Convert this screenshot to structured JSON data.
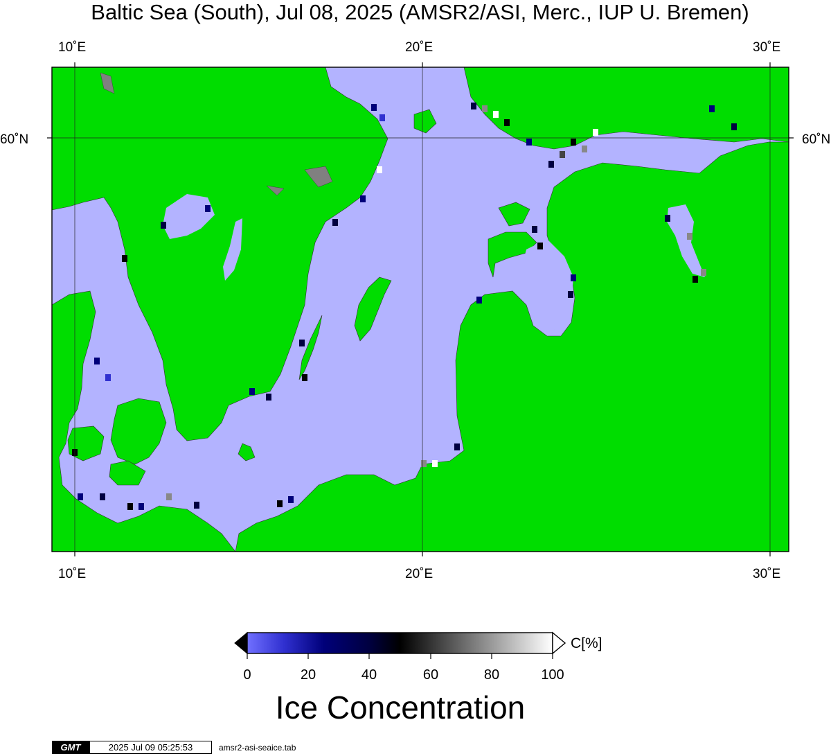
{
  "title": "Baltic Sea (South), Jul 08, 2025 (AMSR2/ASI, Merc., IUP U. Bremen)",
  "axes": {
    "top_ticks": [
      "10˚E",
      "20˚E",
      "30˚E"
    ],
    "bottom_ticks": [
      "10˚E",
      "20˚E",
      "30˚E"
    ],
    "left_ticks": [
      "60˚N"
    ],
    "right_ticks": [
      "60˚N"
    ]
  },
  "colors": {
    "land": "#00dd00",
    "open_water": "#b3b3ff",
    "low_conc": "#0000aa",
    "mid_conc": "#000000",
    "high_conc": "#ffffff"
  },
  "colorbar": {
    "ticks": [
      "0",
      "20",
      "40",
      "60",
      "80",
      "100"
    ],
    "unit": "C[%]",
    "title": "Ice Concentration"
  },
  "footer": {
    "logo": "GMT",
    "timestamp": "2025 Jul 09 05:25:53",
    "file": "amsr2-asi-seaice.tab"
  }
}
